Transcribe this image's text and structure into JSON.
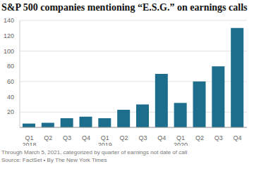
{
  "chart_data": {
    "type": "bar",
    "title": "S&P 500 companies mentioning “E.S.G.” on earnings calls",
    "annotations": [
      "Through March 5, 2021, categorized by quarter of earnings not date of call",
      "Source: FactSet • By The New York Times"
    ],
    "categories": [
      "Q1 2018",
      "Q2",
      "Q3",
      "Q4",
      "Q1 2019",
      "Q2",
      "Q3",
      "Q4",
      "Q1 2020",
      "Q2",
      "Q3",
      "Q4"
    ],
    "values": [
      5,
      6,
      12,
      14,
      12,
      23,
      30,
      70,
      32,
      60,
      80,
      130
    ],
    "color": "#1c6e8c",
    "ylim": [
      0,
      140
    ],
    "yticks": [
      20,
      40,
      60,
      80,
      100,
      120,
      140
    ],
    "grid": true
  }
}
